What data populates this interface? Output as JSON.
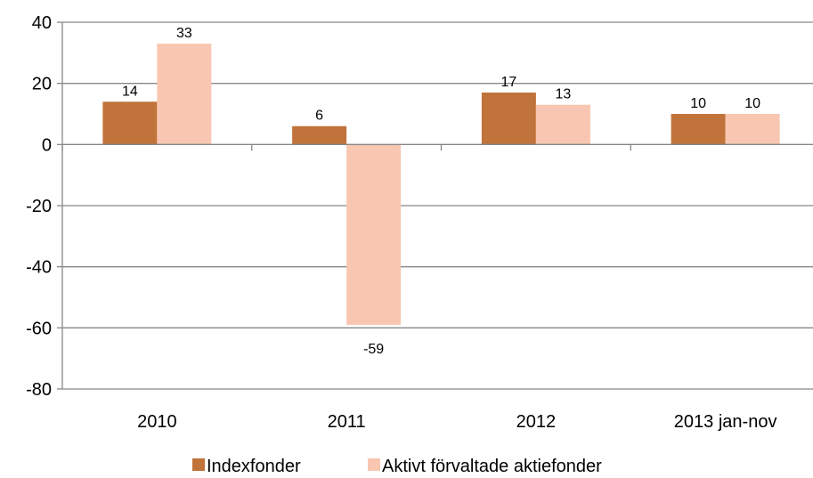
{
  "chart_data": {
    "type": "bar",
    "categories": [
      "2010",
      "2011",
      "2012",
      "2013 jan-nov"
    ],
    "series": [
      {
        "name": "Indexfonder",
        "color": "#c0733a",
        "values": [
          14,
          6,
          17,
          10
        ]
      },
      {
        "name": "Aktivt förvaltade aktiefonder",
        "color": "#f8c6b1",
        "values": [
          33,
          -59,
          13,
          10
        ]
      }
    ],
    "ylim": [
      -80,
      40
    ],
    "yticks": [
      40,
      20,
      0,
      -20,
      -40,
      -60,
      -80
    ],
    "grid": true,
    "legend": "bottom"
  }
}
